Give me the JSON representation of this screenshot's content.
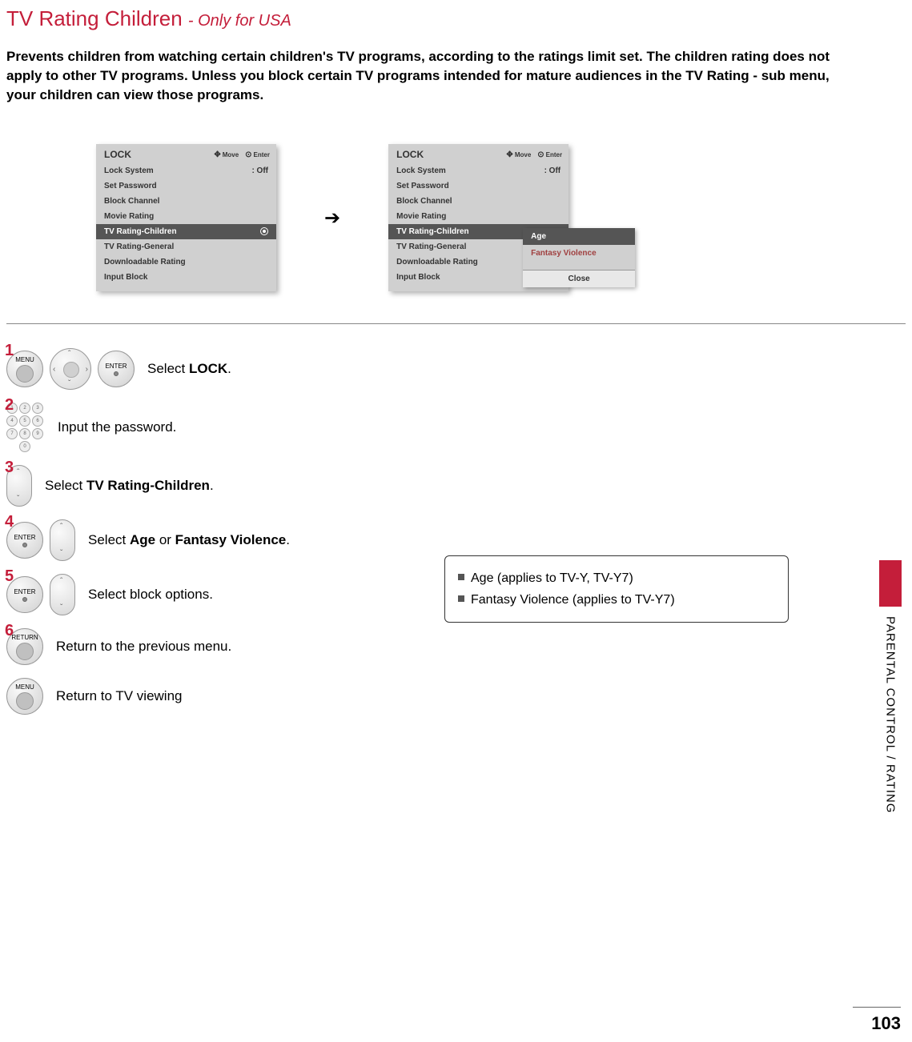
{
  "title": {
    "main": "TV Rating Children",
    "suffix": "- Only for USA"
  },
  "intro": "Prevents children from watching certain children's TV programs, according to the ratings limit set. The children rating does not apply to other TV programs. Unless you block certain TV programs intended for mature audiences in the TV Rating - sub menu, your children can view those programs.",
  "panel": {
    "header": "LOCK",
    "hint_move": "Move",
    "hint_enter": "Enter",
    "items": [
      {
        "label": "Lock System",
        "value": ": Off"
      },
      {
        "label": "Set Password",
        "value": ""
      },
      {
        "label": "Block Channel",
        "value": ""
      },
      {
        "label": "Movie Rating",
        "value": ""
      },
      {
        "label": "TV Rating-Children",
        "value": ""
      },
      {
        "label": "TV Rating-General",
        "value": ""
      },
      {
        "label": "Downloadable Rating",
        "value": ""
      },
      {
        "label": "Input Block",
        "value": ""
      }
    ],
    "selected_index": 4
  },
  "submenu": {
    "items": [
      "Age",
      "Fantasy Violence"
    ],
    "selected_index": 0,
    "close": "Close"
  },
  "steps": {
    "s1": {
      "num": "1",
      "text_pre": "Select ",
      "bold": "LOCK",
      "text_post": "."
    },
    "s2": {
      "num": "2",
      "text": "Input the password."
    },
    "s3": {
      "num": "3",
      "text_pre": "Select ",
      "bold": "TV Rating-Children",
      "text_post": "."
    },
    "s4": {
      "num": "4",
      "text_pre": "Select ",
      "bold1": "Age",
      "mid": " or ",
      "bold2": "Fantasy Violence",
      "text_post": "."
    },
    "s5": {
      "num": "5",
      "text": "Select block options."
    },
    "s6": {
      "num": "6",
      "text": "Return to the previous menu."
    },
    "s7": {
      "text": "Return to TV viewing"
    }
  },
  "buttons": {
    "menu": "MENU",
    "enter": "ENTER",
    "return": "RETURN"
  },
  "info": {
    "line1": "Age (applies to TV-Y, TV-Y7)",
    "line2": "Fantasy Violence (applies to TV-Y7)"
  },
  "side_label": "PARENTAL CONTROL / RATING",
  "page_number": "103",
  "colors": {
    "accent": "#c41e3a",
    "panel_bg": "#d0d0d0",
    "panel_sel_bg": "#555555",
    "text": "#000000"
  }
}
